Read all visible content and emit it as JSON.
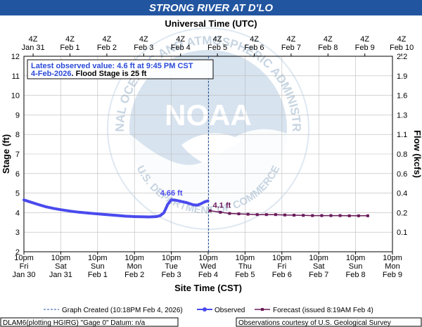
{
  "title": "STRONG RIVER AT D'LO",
  "top_axis": {
    "title": "Universal Time (UTC)",
    "labels": [
      [
        "4Z",
        "Jan 31"
      ],
      [
        "4Z",
        "Feb 1"
      ],
      [
        "4Z",
        "Feb 2"
      ],
      [
        "4Z",
        "Feb 3"
      ],
      [
        "4Z",
        "Feb 4"
      ],
      [
        "4Z",
        "Feb 5"
      ],
      [
        "4Z",
        "Feb 6"
      ],
      [
        "4Z",
        "Feb 7"
      ],
      [
        "4Z",
        "Feb 8"
      ],
      [
        "4Z",
        "Feb 9"
      ],
      [
        "4Z",
        "Feb 10"
      ]
    ]
  },
  "bottom_axis": {
    "title": "Site Time (CST)",
    "labels": [
      [
        "10pm",
        "Fri",
        "Jan 30"
      ],
      [
        "10pm",
        "Sat",
        "Jan 31"
      ],
      [
        "10pm",
        "Sun",
        "Feb 1"
      ],
      [
        "10pm",
        "Mon",
        "Feb 2"
      ],
      [
        "10pm",
        "Tue",
        "Feb 3"
      ],
      [
        "10pm",
        "Wed",
        "Feb 4"
      ],
      [
        "10pm",
        "Thu",
        "Feb 5"
      ],
      [
        "10pm",
        "Fri",
        "Feb 6"
      ],
      [
        "10pm",
        "Sat",
        "Feb 7"
      ],
      [
        "10pm",
        "Sun",
        "Feb 8"
      ],
      [
        "10pm",
        "Mon",
        "Feb 9"
      ]
    ]
  },
  "info_box": {
    "line1": "Latest observed value: 4.6 ft at 9:45 PM CST",
    "line2_date": "4-Feb-2026",
    "line2_flood": ". Flood Stage is 25 ft"
  },
  "annotations": {
    "peak_label": "4.66 ft",
    "forecast_label": "4.1 ft"
  },
  "watermark": {
    "logo": "NOAA",
    "ring": "NATIONAL OCEANIC AND ATMOSPHERIC ADMINISTRATION",
    "ring_bottom": "U.S. DEPARTMENT OF COMMERCE"
  },
  "legend": {
    "graph_created": "Graph Created (10:18PM Feb 4, 2026)",
    "observed": "Observed",
    "forecast": "Forecast (issued 8:19AM Feb 4)"
  },
  "footer": {
    "left": "DLAM6(plotting HGIRG) \"Gage 0\" Datum: n/a",
    "right": "Observations courtesy of U.S. Geological Survey"
  },
  "colors": {
    "title_bar": "#2255a0",
    "observed": "#4a4aee",
    "forecast": "#6a1a5a",
    "info_text": "#2a4ad8",
    "grid": "#bbbbbb",
    "watermark": "#9ab3cc"
  },
  "chart_data": {
    "type": "line",
    "x_unit": "days since Jan 30 10pm CST",
    "y_left": {
      "label": "Stage (ft)",
      "ylim": [
        2,
        12
      ],
      "ticks": [
        2,
        3,
        4,
        5,
        6,
        7,
        8,
        9,
        10,
        11,
        12
      ]
    },
    "y_right": {
      "label": "Flow (kcfs)",
      "ticks": [
        {
          "stage": 3,
          "label": "0.1"
        },
        {
          "stage": 4,
          "label": "0.2"
        },
        {
          "stage": 5,
          "label": "0.4"
        },
        {
          "stage": 6,
          "label": "0.6"
        },
        {
          "stage": 7,
          "label": "0.8"
        },
        {
          "stage": 8,
          "label": "1.1"
        },
        {
          "stage": 9,
          "label": "1.3"
        },
        {
          "stage": 10,
          "label": "1.6"
        },
        {
          "stage": 11,
          "label": "1.9"
        },
        {
          "stage": 12,
          "label": "2.2"
        }
      ]
    },
    "xlim": [
      0,
      10
    ],
    "grid": true,
    "now_x": 5.01,
    "series": [
      {
        "name": "Observed",
        "x": [
          0,
          0.2,
          0.4,
          0.6,
          0.8,
          1.0,
          1.25,
          1.5,
          1.75,
          2.0,
          2.25,
          2.5,
          2.75,
          3.0,
          3.2,
          3.4,
          3.6,
          3.7,
          3.8,
          3.85,
          3.9,
          4.0,
          4.1,
          4.2,
          4.3,
          4.4,
          4.5,
          4.6,
          4.7,
          4.8,
          4.9,
          4.99
        ],
        "y": [
          4.65,
          4.53,
          4.41,
          4.3,
          4.22,
          4.15,
          4.08,
          4.02,
          3.98,
          3.94,
          3.9,
          3.86,
          3.82,
          3.8,
          3.79,
          3.78,
          3.8,
          3.85,
          4.0,
          4.2,
          4.42,
          4.66,
          4.64,
          4.6,
          4.56,
          4.52,
          4.46,
          4.4,
          4.38,
          4.45,
          4.55,
          4.6
        ]
      },
      {
        "name": "Forecast (issued 8:19AM Feb 4)",
        "x": [
          5.05,
          5.33,
          5.58,
          5.83,
          6.08,
          6.33,
          6.58,
          6.83,
          7.08,
          7.33,
          7.58,
          7.83,
          8.08,
          8.33,
          8.58,
          8.83,
          9.08,
          9.33
        ],
        "y": [
          4.1,
          4.02,
          3.96,
          3.94,
          3.92,
          3.9,
          3.9,
          3.9,
          3.88,
          3.87,
          3.86,
          3.85,
          3.85,
          3.85,
          3.85,
          3.84,
          3.84,
          3.84
        ]
      }
    ]
  }
}
